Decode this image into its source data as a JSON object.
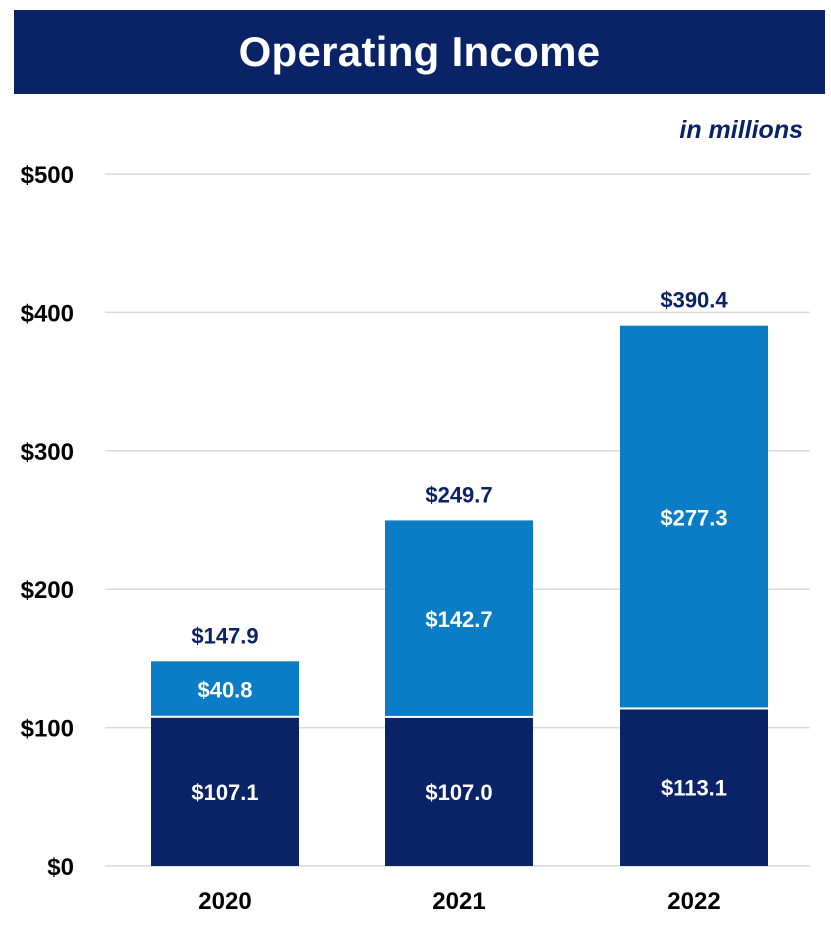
{
  "chart_data": {
    "type": "bar",
    "stacked": true,
    "title": "Operating Income",
    "unit_note": "in millions",
    "categories": [
      "2020",
      "2021",
      "2022"
    ],
    "series": [
      {
        "values": [
          107.1,
          107.0,
          113.1
        ],
        "labels": [
          "$107.1",
          "$107.0",
          "$113.1"
        ],
        "color": "#0a2266"
      },
      {
        "values": [
          40.8,
          142.7,
          277.3
        ],
        "labels": [
          "$40.8",
          "$142.7",
          "$277.3"
        ],
        "color": "#0b7dc6"
      }
    ],
    "totals": [
      147.9,
      249.7,
      390.4
    ],
    "total_labels": [
      "$147.9",
      "$249.7",
      "$390.4"
    ],
    "ylim": [
      0,
      500
    ],
    "y_ticks": [
      0,
      100,
      200,
      300,
      400,
      500
    ],
    "y_tick_labels": [
      "$0",
      "$100",
      "$200",
      "$300",
      "$400",
      "$500"
    ],
    "grid": true,
    "legend": "none"
  },
  "colors": {
    "title_bg": "#0a2266",
    "gridline": "#d9d9d9"
  }
}
